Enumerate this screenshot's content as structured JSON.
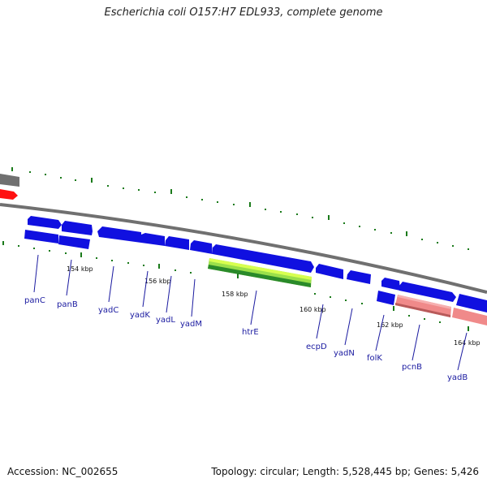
{
  "title": "Escherichia coli O157:H7 EDL933, complete genome",
  "footer": {
    "accession": "Accession: NC_002655",
    "summary": "Topology: circular; Length: 5,528,445 bp; Genes: 5,426"
  },
  "colors": {
    "forward_gene": "#1010e0",
    "reverse_gene": "#1010e0",
    "rna_gene": "#9be04a",
    "pseudo_gene": "#f08a8a",
    "red_feature": "#ff1010",
    "grey_feature": "#707070",
    "tick": "#1a7a1a",
    "label": "#1a1aa0"
  },
  "scale_labels": [
    "154 kbp",
    "156 kbp",
    "158 kbp",
    "160 kbp",
    "162 kbp",
    "164 kbp"
  ],
  "genes": [
    {
      "name": "panC"
    },
    {
      "name": "panB"
    },
    {
      "name": "yadC"
    },
    {
      "name": "yadK"
    },
    {
      "name": "yadL"
    },
    {
      "name": "yadM"
    },
    {
      "name": "htrE"
    },
    {
      "name": "ecpD"
    },
    {
      "name": "yadN"
    },
    {
      "name": "folK"
    },
    {
      "name": "pcnB"
    },
    {
      "name": "yadB"
    }
  ]
}
